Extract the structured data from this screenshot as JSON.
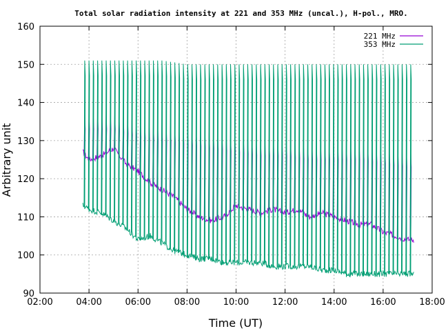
{
  "chart_data": {
    "type": "line",
    "title": "Total solar radiation intensity at 221 and 353 MHz (uncal.), H-pol., MRO.",
    "xlabel": "Time (UT)",
    "ylabel": "Arbitrary unit",
    "xlim": [
      "02:00",
      "18:00"
    ],
    "ylim": [
      90,
      160
    ],
    "x_ticks": [
      "02:00",
      "04:00",
      "06:00",
      "08:00",
      "10:00",
      "12:00",
      "14:00",
      "16:00",
      "18:00"
    ],
    "y_ticks": [
      90,
      100,
      110,
      120,
      130,
      140,
      150,
      160
    ],
    "grid": true,
    "legend_position": "top-right",
    "series": [
      {
        "name": "221 MHz",
        "color": "#9400d3",
        "baseline": {
          "x": [
            "03:45",
            "04:00",
            "04:30",
            "05:00",
            "05:30",
            "06:00",
            "06:30",
            "07:00",
            "07:30",
            "08:00",
            "08:30",
            "09:00",
            "09:30",
            "10:00",
            "10:30",
            "11:00",
            "11:30",
            "12:00",
            "12:30",
            "13:00",
            "13:30",
            "14:00",
            "14:30",
            "15:00",
            "15:30",
            "16:00",
            "16:30",
            "17:00",
            "17:15"
          ],
          "y": [
            127,
            125,
            126,
            128,
            124,
            122,
            119,
            117,
            115,
            112,
            110,
            109,
            110,
            113,
            112,
            111,
            112,
            111,
            112,
            110,
            111,
            110,
            109,
            108,
            108,
            106,
            105,
            104,
            104
          ]
        },
        "spike_peak": {
          "x": [
            "03:45",
            "05:00",
            "06:00",
            "07:00",
            "08:00",
            "09:00",
            "10:00",
            "11:00",
            "12:00",
            "13:00",
            "14:00",
            "15:00",
            "16:00",
            "17:00"
          ],
          "y": [
            137,
            137,
            135,
            134,
            133,
            132,
            131,
            130,
            130,
            129,
            129,
            129,
            128,
            127
          ]
        }
      },
      {
        "name": "353 MHz",
        "color": "#009e73",
        "baseline": {
          "x": [
            "03:45",
            "04:00",
            "04:30",
            "05:00",
            "05:30",
            "06:00",
            "06:30",
            "07:00",
            "07:30",
            "08:00",
            "08:30",
            "09:00",
            "09:30",
            "10:00",
            "10:30",
            "11:00",
            "11:30",
            "12:00",
            "12:30",
            "13:00",
            "13:30",
            "14:00",
            "14:30",
            "15:00",
            "15:30",
            "16:00",
            "16:30",
            "17:00",
            "17:15"
          ],
          "y": [
            113,
            112,
            111,
            109,
            107,
            104,
            105,
            103,
            101,
            100,
            99,
            99,
            98,
            98,
            98,
            98,
            97,
            97,
            97,
            97,
            96,
            96,
            95,
            95,
            95,
            95,
            95,
            95,
            95
          ]
        },
        "spike_peak": {
          "x": [
            "03:45",
            "05:00",
            "06:00",
            "07:00",
            "08:00",
            "09:00",
            "10:00",
            "11:00",
            "12:00",
            "13:00",
            "14:00",
            "15:00",
            "16:00",
            "17:00"
          ],
          "y": [
            151,
            151,
            151,
            151,
            150,
            150,
            150,
            150,
            150,
            150,
            150,
            150,
            150,
            150
          ]
        }
      }
    ]
  }
}
